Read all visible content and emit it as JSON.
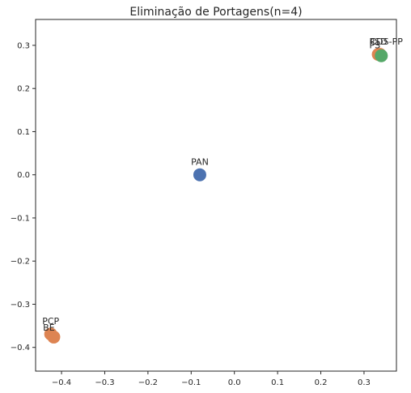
{
  "chart_data": {
    "type": "scatter",
    "title": "Eliminação de Portagens(n=4)",
    "xlabel": "",
    "ylabel": "",
    "xlim": [
      -0.46,
      0.375
    ],
    "ylim": [
      -0.455,
      0.36
    ],
    "x_ticks": [
      -0.4,
      -0.3,
      -0.2,
      -0.1,
      0.0,
      0.1,
      0.2,
      0.3
    ],
    "x_tick_labels": [
      "−0.4",
      "−0.3",
      "−0.2",
      "−0.1",
      "0.0",
      "0.1",
      "0.2",
      "0.3"
    ],
    "y_ticks": [
      0.3,
      0.2,
      0.1,
      0.0,
      -0.1,
      -0.2,
      -0.3,
      -0.4
    ],
    "y_tick_labels": [
      "0.3",
      "0.2",
      "0.1",
      "0.0",
      "−0.1",
      "−0.2",
      "−0.3",
      "−0.4"
    ],
    "grid": false,
    "points": [
      {
        "label": "PCP",
        "x": -0.425,
        "y": -0.369,
        "color": "#dd8452",
        "label_dx": 0,
        "label_dy": 0
      },
      {
        "label": "BE",
        "x": -0.418,
        "y": -0.376,
        "color": "#dd8452",
        "label_dx": -6,
        "label_dy": 4
      },
      {
        "label": "PSD",
        "x": 0.333,
        "y": 0.279,
        "color": "#dd8452",
        "label_dx": 0,
        "label_dy": 0
      },
      {
        "label": "CDS-PP",
        "x": 0.337,
        "y": 0.279,
        "color": "#dd8452",
        "label_dx": 8,
        "label_dy": 0
      },
      {
        "label": "PS",
        "x": 0.34,
        "y": 0.276,
        "color": "#55a868",
        "label_dx": -8,
        "label_dy": 3
      },
      {
        "label": "PAN",
        "x": -0.08,
        "y": 0.0,
        "color": "#4c72b0",
        "label_dx": 0,
        "label_dy": 0
      }
    ]
  }
}
